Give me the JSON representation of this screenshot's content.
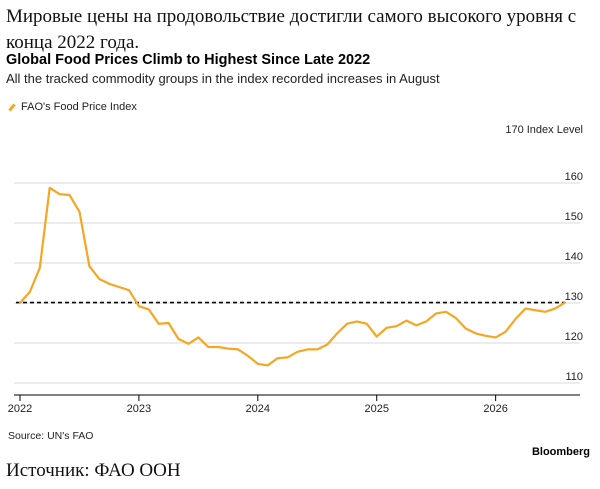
{
  "ru_title": "Мировые цены на продовольствие достигли самого высокого уровня с конца 2022 года.",
  "ru_source": "Источник: ФАО ООН",
  "source": "Source: UN's FAO",
  "brand": "Bloomberg",
  "colors": {
    "line": "#f5a623",
    "reference": "#000000",
    "grid": "#d9d9d9"
  },
  "chart_data": {
    "type": "line",
    "title": "Global Food Prices Climb to Highest Since Late 2022",
    "subtitle": "All the tracked commodity groups in the index recorded increases in August",
    "ylabel": "Index Level",
    "ylim": [
      107,
      170
    ],
    "yticks": [
      110,
      120,
      130,
      140,
      150,
      160,
      170
    ],
    "xticks": [
      "2022",
      "2023",
      "2024",
      "2025",
      "2026"
    ],
    "xlim": [
      "2022-01",
      "2026-08"
    ],
    "reference_line": 130.1,
    "grid": "horizontal",
    "legend_position": "top-left",
    "series": [
      {
        "name": "FAO's Food Price Index",
        "x": [
          "2022-01",
          "2022-02",
          "2022-03",
          "2022-04",
          "2022-05",
          "2022-06",
          "2022-07",
          "2022-08",
          "2022-09",
          "2022-10",
          "2022-11",
          "2022-12",
          "2023-01",
          "2023-02",
          "2023-03",
          "2023-04",
          "2023-05",
          "2023-06",
          "2023-07",
          "2023-08",
          "2023-09",
          "2023-10",
          "2023-11",
          "2023-12",
          "2024-01",
          "2024-02",
          "2024-03",
          "2024-04",
          "2024-05",
          "2024-06",
          "2024-07",
          "2024-08",
          "2024-09",
          "2024-10",
          "2024-11",
          "2024-12",
          "2025-01",
          "2025-02",
          "2025-03",
          "2025-04",
          "2025-05",
          "2025-06",
          "2025-07",
          "2025-08",
          "2025-09",
          "2025-10",
          "2025-11",
          "2025-12",
          "2026-01",
          "2026-02",
          "2026-03",
          "2026-04",
          "2026-05",
          "2026-06",
          "2026-07",
          "2026-08"
        ],
        "values": [
          130.0,
          132.8,
          138.8,
          158.8,
          157.2,
          157.0,
          152.8,
          139.2,
          136.0,
          134.8,
          134.0,
          133.2,
          129.2,
          128.4,
          124.8,
          125.0,
          121.0,
          119.8,
          121.4,
          119.0,
          119.0,
          118.6,
          118.4,
          116.8,
          114.8,
          114.4,
          116.2,
          116.4,
          117.8,
          118.4,
          118.4,
          119.6,
          122.4,
          124.8,
          125.4,
          124.8,
          121.6,
          123.8,
          124.2,
          125.6,
          124.4,
          125.4,
          127.4,
          127.8,
          126.2,
          123.6,
          122.4,
          121.8,
          121.4,
          122.8,
          126.0,
          128.6,
          128.2,
          127.8,
          128.6,
          130.1
        ]
      }
    ]
  }
}
